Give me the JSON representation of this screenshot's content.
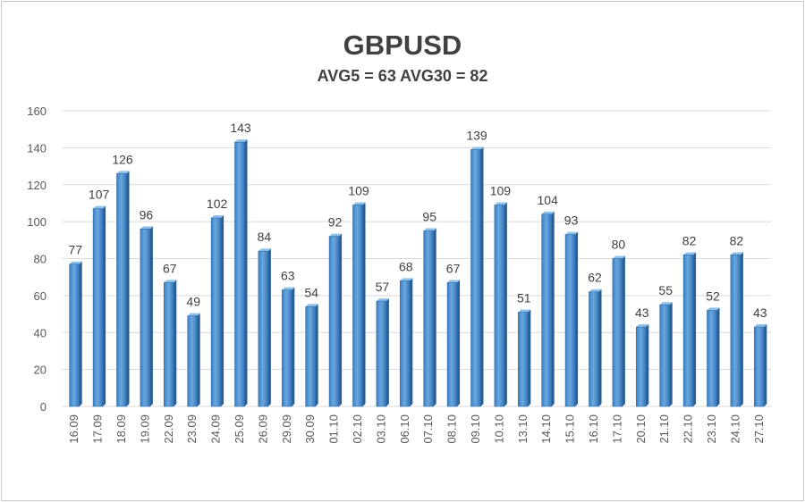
{
  "chart_data": {
    "type": "bar",
    "title": "GBPUSD",
    "subtitle": "AVG5 = 63 AVG30 = 82",
    "xlabel": "",
    "ylabel": "",
    "ylim": [
      0,
      160
    ],
    "yticks": [
      "0",
      "20",
      "40",
      "60",
      "80",
      "100",
      "120",
      "140",
      "160"
    ],
    "grid": true,
    "legend": "none",
    "bar_color": "#4a90d0",
    "bar_edge_color": "#2e6da4",
    "grid_color": "#d9d9d9",
    "categories": [
      "16.09",
      "17.09",
      "18.09",
      "19.09",
      "22.09",
      "23.09",
      "24.09",
      "25.09",
      "26.09",
      "29.09",
      "30.09",
      "01.10",
      "02.10",
      "03.10",
      "06.10",
      "07.10",
      "08.10",
      "09.10",
      "10.10",
      "13.10",
      "14.10",
      "15.10",
      "16.10",
      "17.10",
      "20.10",
      "21.10",
      "22.10",
      "23.10",
      "24.10",
      "27.10"
    ],
    "values": [
      77,
      107,
      126,
      96,
      67,
      49,
      102,
      143,
      84,
      63,
      54,
      92,
      109,
      57,
      68,
      95,
      67,
      139,
      109,
      51,
      104,
      93,
      62,
      80,
      43,
      55,
      82,
      52,
      82,
      43
    ]
  }
}
